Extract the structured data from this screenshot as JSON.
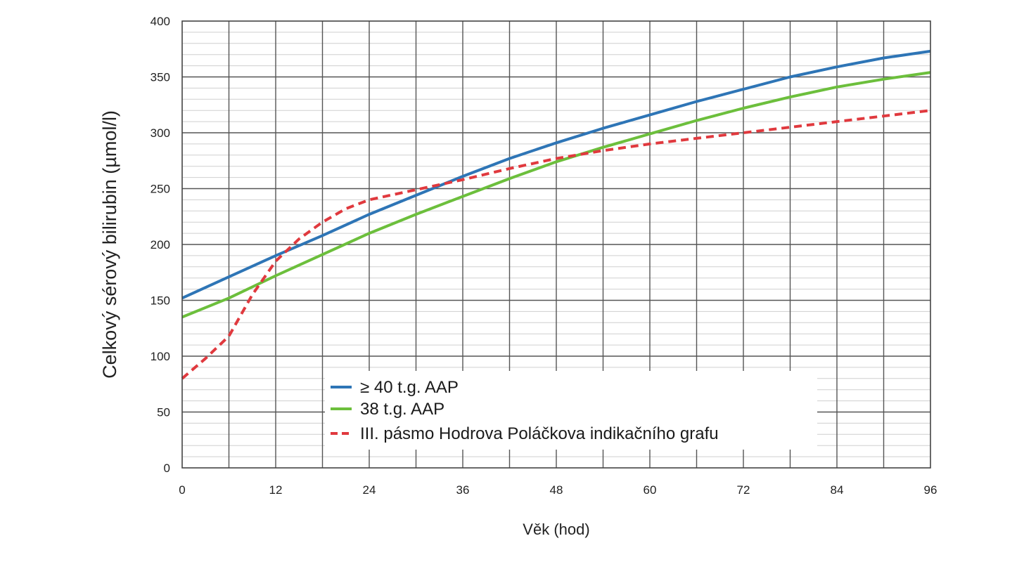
{
  "chart_data": {
    "type": "line",
    "title": "",
    "xlabel": "Věk (hod)",
    "ylabel": "Celkový sérový bilirubin (µmol/l)",
    "xlim": [
      0,
      96
    ],
    "ylim": [
      0,
      400
    ],
    "x_ticks": [
      "0",
      "12",
      "24",
      "36",
      "48",
      "60",
      "72",
      "84",
      "96"
    ],
    "y_ticks": [
      "0",
      "50",
      "100",
      "150",
      "200",
      "250",
      "300",
      "350",
      "400"
    ],
    "grid": true,
    "legend_position": "bottom-center",
    "series": [
      {
        "name": "≥ 40 t.g. AAP",
        "color": "#2e75b6",
        "style": "solid",
        "x": [
          0,
          6,
          12,
          18,
          24,
          30,
          36,
          42,
          48,
          54,
          60,
          66,
          72,
          78,
          84,
          90,
          96
        ],
        "y": [
          152,
          171,
          190,
          208,
          227,
          244,
          261,
          277,
          291,
          304,
          316,
          328,
          339,
          350,
          359,
          367,
          373
        ]
      },
      {
        "name": "38 t.g. AAP",
        "color": "#6cbf3c",
        "style": "solid",
        "x": [
          0,
          6,
          12,
          18,
          24,
          30,
          36,
          42,
          48,
          54,
          60,
          66,
          72,
          78,
          84,
          90,
          96
        ],
        "y": [
          135,
          152,
          172,
          191,
          210,
          227,
          243,
          259,
          274,
          287,
          299,
          311,
          322,
          332,
          341,
          348,
          354
        ]
      },
      {
        "name": "III. pásmo Hodrova Poláčkova indikačního grafu",
        "color": "#e0393e",
        "style": "dashed",
        "x": [
          0,
          3,
          6,
          9,
          12,
          15,
          18,
          21,
          24,
          30,
          36,
          42,
          48,
          54,
          60,
          66,
          72,
          78,
          84,
          90,
          96
        ],
        "y": [
          80,
          98,
          118,
          155,
          185,
          205,
          220,
          232,
          240,
          249,
          258,
          268,
          277,
          284,
          290,
          295,
          300,
          305,
          310,
          315,
          320
        ]
      }
    ]
  }
}
